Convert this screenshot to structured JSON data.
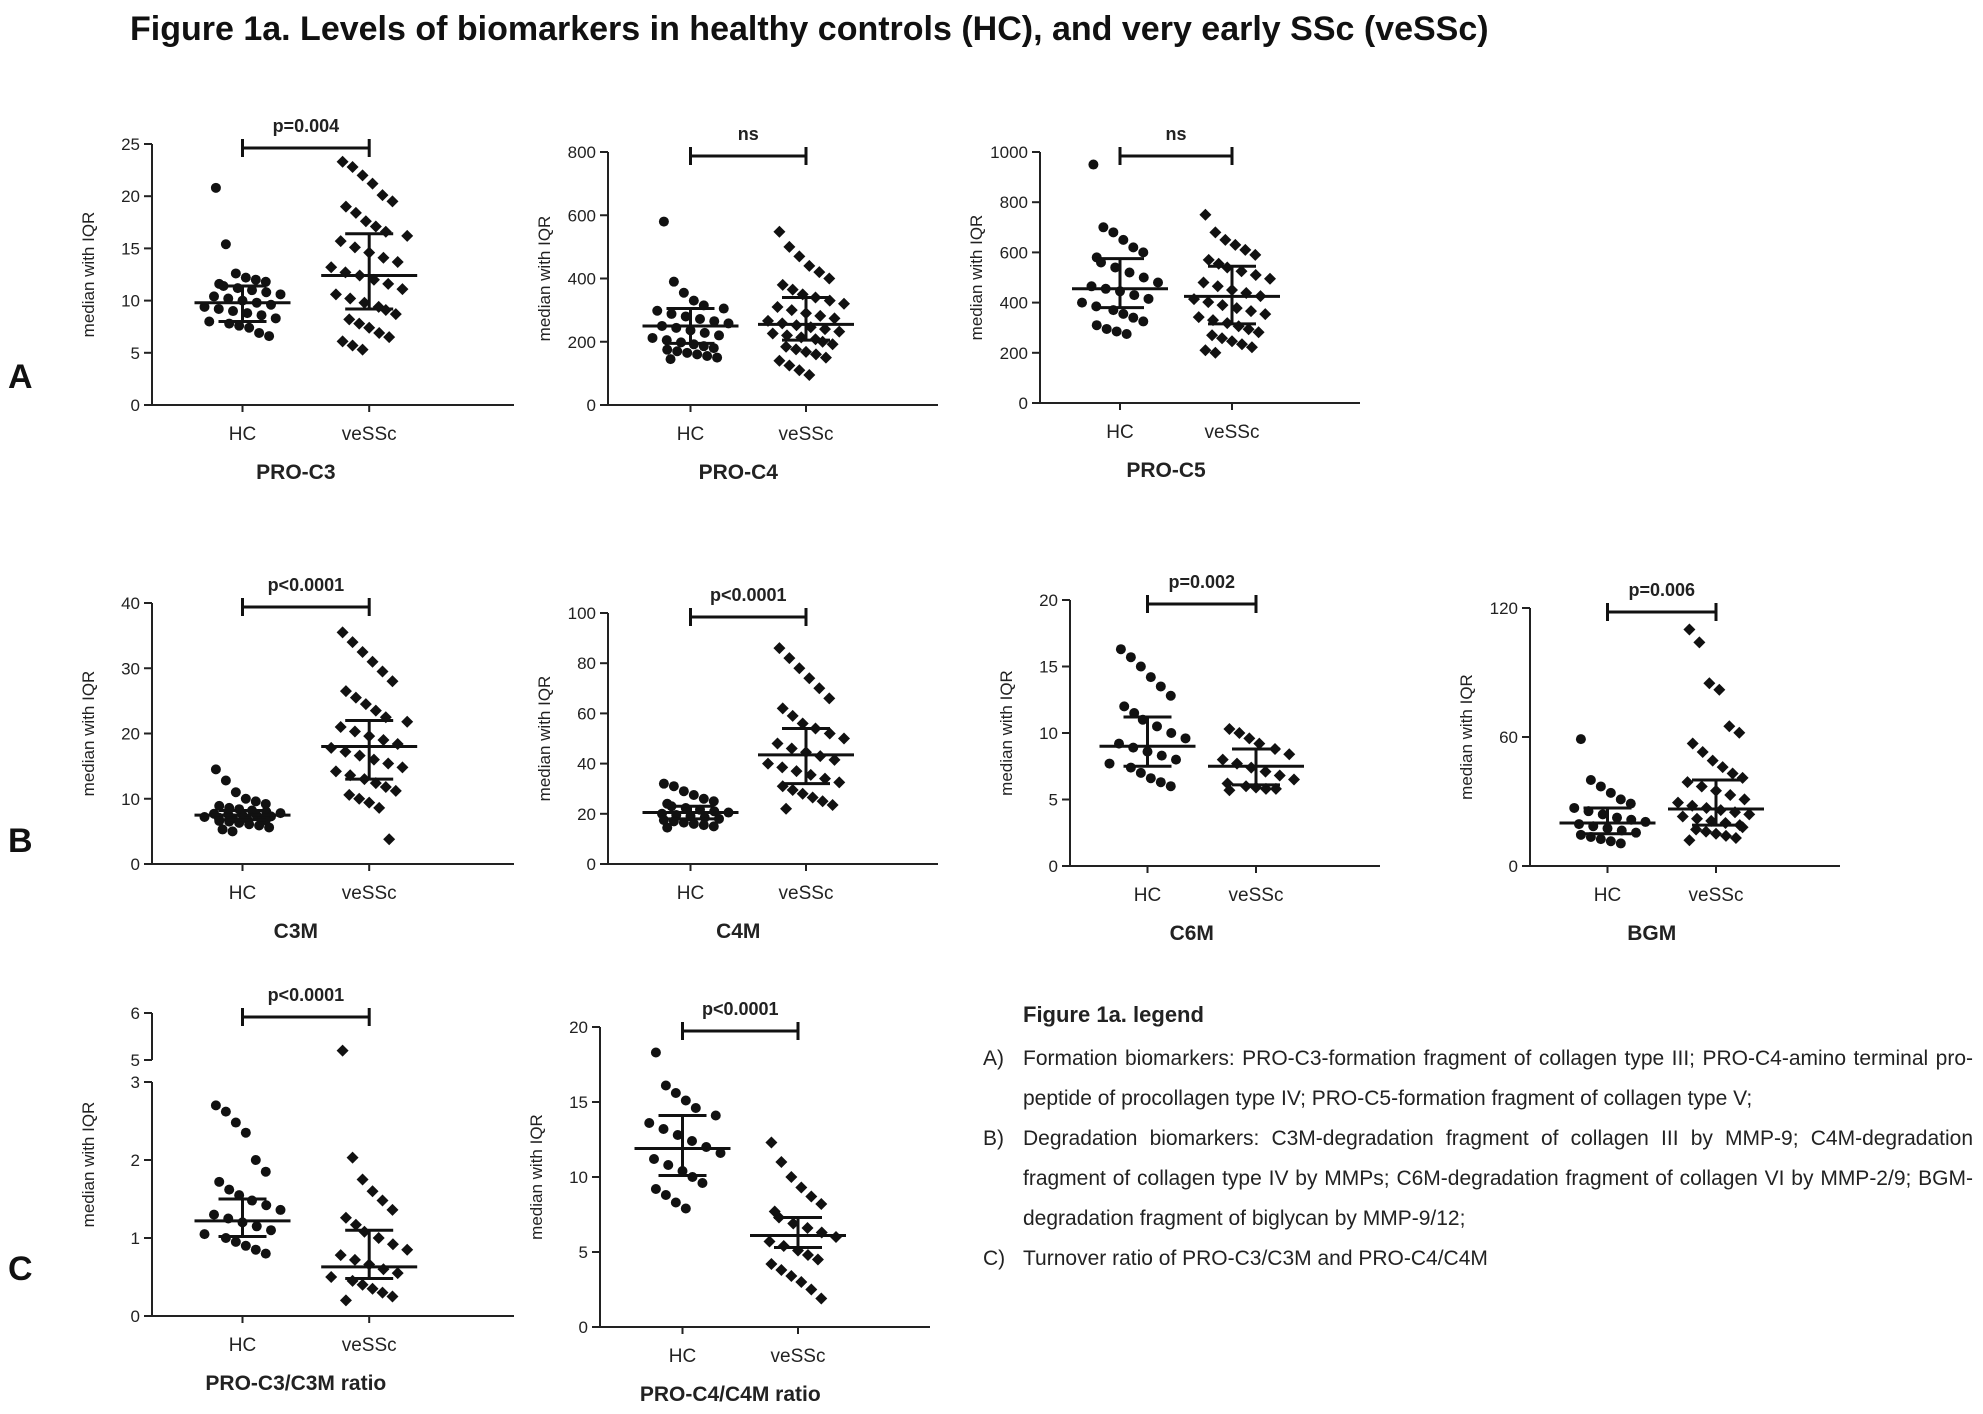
{
  "figure": {
    "title": "Figure 1a. Levels of biomarkers in healthy controls (HC), and very early SSc (veSSc)",
    "row_labels": [
      "A",
      "B",
      "C"
    ],
    "point_color": "#111111"
  },
  "legend": {
    "title": "Figure 1a. legend",
    "items": [
      {
        "label": "A)",
        "text": "Formation biomarkers: PRO-C3-formation fragment of collagen type III; PRO-C4-amino terminal pro-peptide of procollagen type IV; PRO-C5-formation fragment of collagen type V;"
      },
      {
        "label": "B)",
        "text": "Degradation biomarkers: C3M-degradation fragment of collagen III by MMP-9; C4M-degradation fragment of collagen type IV by MMPs; C6M-degradation fragment of collagen VI by MMP-2/9; BGM-degradation fragment of biglycan by MMP-9/12;"
      },
      {
        "label": "C)",
        "text": "Turnover ratio of PRO-C3/C3M and PRO-C4/C4M"
      }
    ]
  },
  "chart_data": [
    {
      "type": "scatter",
      "title": "PRO-C3",
      "ylabel": "median with IQR",
      "categories": [
        "HC",
        "veSSc"
      ],
      "ylim": [
        0,
        25
      ],
      "yticks": [
        0,
        5,
        10,
        15,
        20,
        25
      ],
      "comparison": "p=0.004",
      "series": [
        {
          "name": "HC",
          "median": 9.8,
          "q1": 8.0,
          "q3": 11.4,
          "values": [
            20.8,
            15.4,
            12.6,
            12.2,
            12.0,
            11.8,
            11.6,
            11.4,
            11.2,
            11.0,
            10.8,
            10.6,
            10.4,
            10.2,
            10.0,
            9.8,
            9.6,
            9.4,
            9.2,
            9.0,
            8.8,
            8.6,
            8.3,
            8.0,
            7.8,
            7.6,
            7.4,
            6.9,
            6.6
          ]
        },
        {
          "name": "veSSc",
          "values": [
            23.3,
            22.8,
            22.0,
            21.2,
            20.1,
            19.5,
            19.0,
            18.4,
            17.6,
            17.1,
            16.6,
            16.2,
            15.7,
            15.1,
            14.6,
            14.1,
            13.7,
            13.2,
            12.7,
            12.4,
            12.0,
            11.6,
            11.1,
            10.6,
            10.2,
            9.8,
            9.4,
            9.1,
            8.7,
            8.2,
            7.8,
            7.4,
            6.9,
            6.5,
            6.1,
            5.7,
            5.3
          ],
          "median": 12.4,
          "q1": 9.2,
          "q3": 16.4
        }
      ]
    },
    {
      "type": "scatter",
      "title": "PRO-C4",
      "ylabel": "median with IQR",
      "categories": [
        "HC",
        "veSSc"
      ],
      "ylim": [
        0,
        800
      ],
      "yticks": [
        0,
        200,
        400,
        600,
        800
      ],
      "comparison": "ns",
      "series": [
        {
          "name": "HC",
          "median": 250,
          "q1": 195,
          "q3": 305,
          "values": [
            580,
            390,
            355,
            330,
            315,
            305,
            298,
            288,
            280,
            272,
            265,
            258,
            250,
            244,
            236,
            228,
            220,
            212,
            205,
            198,
            192,
            186,
            180,
            175,
            170,
            165,
            160,
            155,
            150,
            145
          ]
        },
        {
          "name": "veSSc",
          "median": 255,
          "q1": 205,
          "q3": 340,
          "values": [
            548,
            500,
            470,
            440,
            420,
            400,
            380,
            365,
            350,
            340,
            330,
            320,
            310,
            300,
            290,
            282,
            274,
            266,
            258,
            252,
            246,
            240,
            232,
            226,
            220,
            214,
            208,
            200,
            192,
            184,
            176,
            168,
            160,
            150,
            140,
            125,
            110,
            95
          ]
        }
      ]
    },
    {
      "type": "scatter",
      "title": "PRO-C5",
      "ylabel": "median with IQR",
      "categories": [
        "HC",
        "veSSc"
      ],
      "ylim": [
        0,
        1000
      ],
      "yticks": [
        0,
        200,
        400,
        600,
        800,
        1000
      ],
      "comparison": "ns",
      "series": [
        {
          "name": "HC",
          "median": 455,
          "q1": 380,
          "q3": 575,
          "values": [
            950,
            700,
            680,
            650,
            620,
            600,
            580,
            560,
            540,
            520,
            500,
            480,
            465,
            455,
            445,
            430,
            415,
            400,
            385,
            370,
            355,
            340,
            325,
            310,
            295,
            285,
            275
          ]
        },
        {
          "name": "veSSc",
          "median": 425,
          "q1": 315,
          "q3": 545,
          "values": [
            750,
            680,
            650,
            630,
            610,
            590,
            570,
            555,
            540,
            525,
            510,
            495,
            480,
            465,
            450,
            438,
            426,
            414,
            402,
            390,
            378,
            366,
            354,
            342,
            330,
            318,
            306,
            294,
            282,
            270,
            258,
            246,
            234,
            222,
            210,
            200
          ]
        }
      ]
    },
    {
      "type": "scatter",
      "title": "C3M",
      "ylabel": "median with IQR",
      "categories": [
        "HC",
        "veSSc"
      ],
      "ylim": [
        0,
        40
      ],
      "yticks": [
        0,
        10,
        20,
        30,
        40
      ],
      "comparison": "p<0.0001",
      "series": [
        {
          "name": "HC",
          "median": 7.5,
          "q1": 6.8,
          "q3": 8.2,
          "values": [
            14.5,
            12.8,
            11.0,
            10.0,
            9.6,
            9.2,
            8.9,
            8.6,
            8.4,
            8.2,
            8.0,
            7.8,
            7.7,
            7.6,
            7.5,
            7.4,
            7.3,
            7.2,
            7.1,
            7.0,
            6.9,
            6.8,
            6.7,
            6.6,
            6.5,
            6.3,
            6.1,
            5.9,
            5.6,
            5.3,
            5.0
          ]
        },
        {
          "name": "veSSc",
          "median": 18.0,
          "q1": 13.0,
          "q3": 22.0,
          "values": [
            35.5,
            34.0,
            32.5,
            31.0,
            29.5,
            28.0,
            26.5,
            25.5,
            24.5,
            23.5,
            22.5,
            21.8,
            21.0,
            20.3,
            19.6,
            19.0,
            18.4,
            17.8,
            17.2,
            16.6,
            16.0,
            15.4,
            14.8,
            14.2,
            13.6,
            13.0,
            12.4,
            11.8,
            11.2,
            10.6,
            10.0,
            9.4,
            8.6,
            3.8
          ]
        }
      ]
    },
    {
      "type": "scatter",
      "title": "C4M",
      "ylabel": "median with IQR",
      "categories": [
        "HC",
        "veSSc"
      ],
      "ylim": [
        0,
        100
      ],
      "yticks": [
        0,
        20,
        40,
        60,
        80,
        100
      ],
      "comparison": "p<0.0001",
      "series": [
        {
          "name": "HC",
          "median": 20.5,
          "q1": 18.0,
          "q3": 23.0,
          "values": [
            32.0,
            31.0,
            29.0,
            27.5,
            26.0,
            25.0,
            24.0,
            23.0,
            22.3,
            21.6,
            21.0,
            20.5,
            20.0,
            19.5,
            19.0,
            18.5,
            18.0,
            17.5,
            17.0,
            16.5,
            16.0,
            15.5,
            15.0,
            14.5
          ]
        },
        {
          "name": "veSSc",
          "median": 43.5,
          "q1": 32.0,
          "q3": 54.0,
          "values": [
            86.0,
            82.0,
            78.0,
            74.0,
            70.0,
            66.0,
            62.0,
            59.0,
            56.0,
            54.0,
            52.0,
            50.0,
            48.0,
            46.0,
            44.5,
            43.0,
            41.5,
            40.0,
            38.5,
            37.0,
            35.5,
            34.0,
            32.5,
            31.0,
            29.5,
            28.0,
            26.5,
            25.0,
            23.5,
            22.0
          ]
        }
      ]
    },
    {
      "type": "scatter",
      "title": "C6M",
      "ylabel": "median with IQR",
      "categories": [
        "HC",
        "veSSc"
      ],
      "ylim": [
        0,
        20
      ],
      "yticks": [
        0,
        5,
        10,
        15,
        20
      ],
      "comparison": "p=0.002",
      "series": [
        {
          "name": "HC",
          "median": 9.0,
          "q1": 7.5,
          "q3": 11.2,
          "values": [
            16.3,
            15.7,
            15.0,
            14.2,
            13.5,
            12.8,
            12.0,
            11.5,
            11.0,
            10.5,
            10.0,
            9.6,
            9.2,
            8.9,
            8.6,
            8.3,
            8.0,
            7.7,
            7.4,
            7.0,
            6.6,
            6.3,
            6.0
          ]
        },
        {
          "name": "veSSc",
          "median": 7.5,
          "q1": 6.1,
          "q3": 8.8,
          "values": [
            10.3,
            10.0,
            9.6,
            9.2,
            8.8,
            8.4,
            8.0,
            7.7,
            7.4,
            7.1,
            6.8,
            6.5,
            6.2,
            6.0,
            5.9,
            5.8,
            5.8,
            5.7
          ]
        }
      ]
    },
    {
      "type": "scatter",
      "title": "BGM",
      "ylabel": "median with IQR",
      "categories": [
        "HC",
        "veSSc"
      ],
      "ylim": [
        0,
        120
      ],
      "yticks": [
        0,
        60,
        120
      ],
      "comparison": "p=0.006",
      "series": [
        {
          "name": "HC",
          "median": 20.0,
          "q1": 15.0,
          "q3": 27.0,
          "values": [
            59.0,
            40.0,
            37.0,
            34.0,
            31.0,
            29.0,
            27.0,
            25.5,
            24.0,
            22.5,
            21.5,
            20.5,
            19.5,
            18.5,
            17.5,
            16.5,
            15.5,
            14.5,
            13.5,
            12.5,
            11.5,
            10.5
          ]
        },
        {
          "name": "veSSc",
          "median": 26.5,
          "q1": 19.0,
          "q3": 40.0,
          "values": [
            110.0,
            104.0,
            85.0,
            82.0,
            65.0,
            62.0,
            57.0,
            53.0,
            49.0,
            46.0,
            43.0,
            41.0,
            39.0,
            37.0,
            35.0,
            33.0,
            31.0,
            29.5,
            28.0,
            27.0,
            26.0,
            25.0,
            24.0,
            23.0,
            22.0,
            21.0,
            20.0,
            19.0,
            18.0,
            17.0,
            16.0,
            15.0,
            14.0,
            13.0,
            12.0
          ]
        }
      ]
    },
    {
      "type": "scatter",
      "title": "PRO-C3/C3M ratio",
      "ylabel": "median with IQR",
      "categories": [
        "HC",
        "veSSc"
      ],
      "ylim": [
        0,
        6
      ],
      "yticks": [
        0,
        1,
        2,
        3,
        5,
        6
      ],
      "axis_break": [
        3,
        5
      ],
      "comparison": "p<0.0001",
      "series": [
        {
          "name": "HC",
          "median": 1.22,
          "q1": 1.02,
          "q3": 1.5,
          "values": [
            2.7,
            2.62,
            2.48,
            2.35,
            2.0,
            1.85,
            1.72,
            1.62,
            1.55,
            1.48,
            1.42,
            1.36,
            1.3,
            1.25,
            1.2,
            1.15,
            1.1,
            1.05,
            1.0,
            0.95,
            0.9,
            0.85,
            0.8
          ]
        },
        {
          "name": "veSSc",
          "median": 0.63,
          "q1": 0.48,
          "q3": 1.1,
          "values": [
            5.2,
            2.03,
            1.75,
            1.6,
            1.48,
            1.36,
            1.26,
            1.17,
            1.08,
            1.0,
            0.92,
            0.85,
            0.78,
            0.72,
            0.66,
            0.6,
            0.55,
            0.5,
            0.45,
            0.4,
            0.35,
            0.3,
            0.25,
            0.2
          ]
        }
      ]
    },
    {
      "type": "scatter",
      "title": "PRO-C4/C4M ratio",
      "ylabel": "median with IQR",
      "categories": [
        "HC",
        "veSSc"
      ],
      "ylim": [
        0,
        20
      ],
      "yticks": [
        0,
        5,
        10,
        15,
        20
      ],
      "comparison": "p<0.0001",
      "series": [
        {
          "name": "HC",
          "median": 11.9,
          "q1": 10.1,
          "q3": 14.1,
          "values": [
            18.3,
            16.1,
            15.6,
            15.1,
            14.6,
            14.1,
            13.6,
            13.2,
            12.8,
            12.4,
            12.0,
            11.6,
            11.2,
            10.8,
            10.4,
            10.0,
            9.6,
            9.2,
            8.8,
            8.3,
            7.9
          ]
        },
        {
          "name": "veSSc",
          "median": 6.1,
          "q1": 5.3,
          "q3": 7.3,
          "values": [
            12.3,
            11.0,
            10.0,
            9.3,
            8.7,
            8.2,
            7.7,
            7.3,
            6.9,
            6.6,
            6.3,
            6.0,
            5.7,
            5.4,
            5.1,
            4.8,
            4.5,
            4.2,
            3.8,
            3.4,
            3.0,
            2.5,
            1.9
          ]
        }
      ]
    }
  ]
}
